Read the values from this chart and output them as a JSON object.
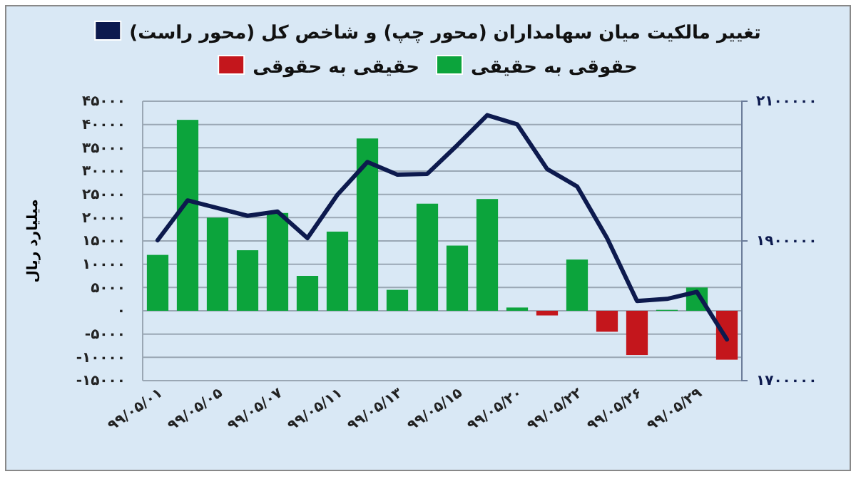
{
  "chart_data": {
    "type": "bar",
    "legend": "top",
    "grid": "y",
    "ylabel": "میلیارد ریال",
    "categories": [
      "۹۹/۰۵/۰۱",
      null,
      "۹۹/۰۵/۰۵",
      null,
      "۹۹/۰۵/۰۷",
      null,
      "۹۹/۰۵/۱۱",
      null,
      "۹۹/۰۵/۱۳",
      null,
      "۹۹/۰۵/۱۵",
      null,
      "۹۹/۰۵/۲۰",
      null,
      "۹۹/۰۵/۲۲",
      null,
      "۹۹/۰۵/۲۶",
      null,
      "۹۹/۰۵/۲۹",
      null
    ],
    "series": [
      {
        "name": "حقوقی به حقیقی",
        "color": "#0ca43c",
        "values": [
          12000,
          41000,
          20000,
          13000,
          21000,
          7500,
          17000,
          37000,
          4500,
          23000,
          14000,
          24000,
          700,
          null,
          11000,
          null,
          null,
          200,
          5000,
          null
        ]
      },
      {
        "name": "حقیقی به حقوقی",
        "color": "#c4161c",
        "values": [
          null,
          null,
          null,
          null,
          null,
          null,
          null,
          null,
          null,
          null,
          null,
          null,
          null,
          -1000,
          null,
          -4500,
          -9500,
          null,
          null,
          -10500
        ]
      },
      {
        "name": "تغییر مالکیت میان سهامداران (محور چپ) و شاخص کل (محور راست)",
        "type": "line",
        "axis": "y2",
        "color": "#0d1a4e",
        "values": [
          1901000,
          1958000,
          1947000,
          1936000,
          1942000,
          1904000,
          1966000,
          2013000,
          1995000,
          1996000,
          2037000,
          2080000,
          2067000,
          2003000,
          1978000,
          1904000,
          1814000,
          1817000,
          1827000,
          1759000
        ]
      }
    ],
    "ylim": [
      -15000,
      45000
    ],
    "yticks": [
      {
        "value": -15000,
        "label": "-۱۵۰۰۰"
      },
      {
        "value": -10000,
        "label": "-۱۰۰۰۰"
      },
      {
        "value": -5000,
        "label": "-۵۰۰۰"
      },
      {
        "value": 0,
        "label": "۰"
      },
      {
        "value": 5000,
        "label": "۵۰۰۰"
      },
      {
        "value": 10000,
        "label": "۱۰۰۰۰"
      },
      {
        "value": 15000,
        "label": "۱۵۰۰۰"
      },
      {
        "value": 20000,
        "label": "۲۰۰۰۰"
      },
      {
        "value": 25000,
        "label": "۲۵۰۰۰"
      },
      {
        "value": 30000,
        "label": "۳۰۰۰۰"
      },
      {
        "value": 35000,
        "label": "۳۵۰۰۰"
      },
      {
        "value": 40000,
        "label": "۴۰۰۰۰"
      },
      {
        "value": 45000,
        "label": "۴۵۰۰۰"
      }
    ],
    "y2lim": [
      1700000,
      2100000
    ],
    "y2ticks": [
      {
        "value": 1700000,
        "label": "۱۷۰۰۰۰۰"
      },
      {
        "value": 1900000,
        "label": "۱۹۰۰۰۰۰"
      },
      {
        "value": 2100000,
        "label": "۲۱۰۰۰۰۰"
      }
    ]
  }
}
